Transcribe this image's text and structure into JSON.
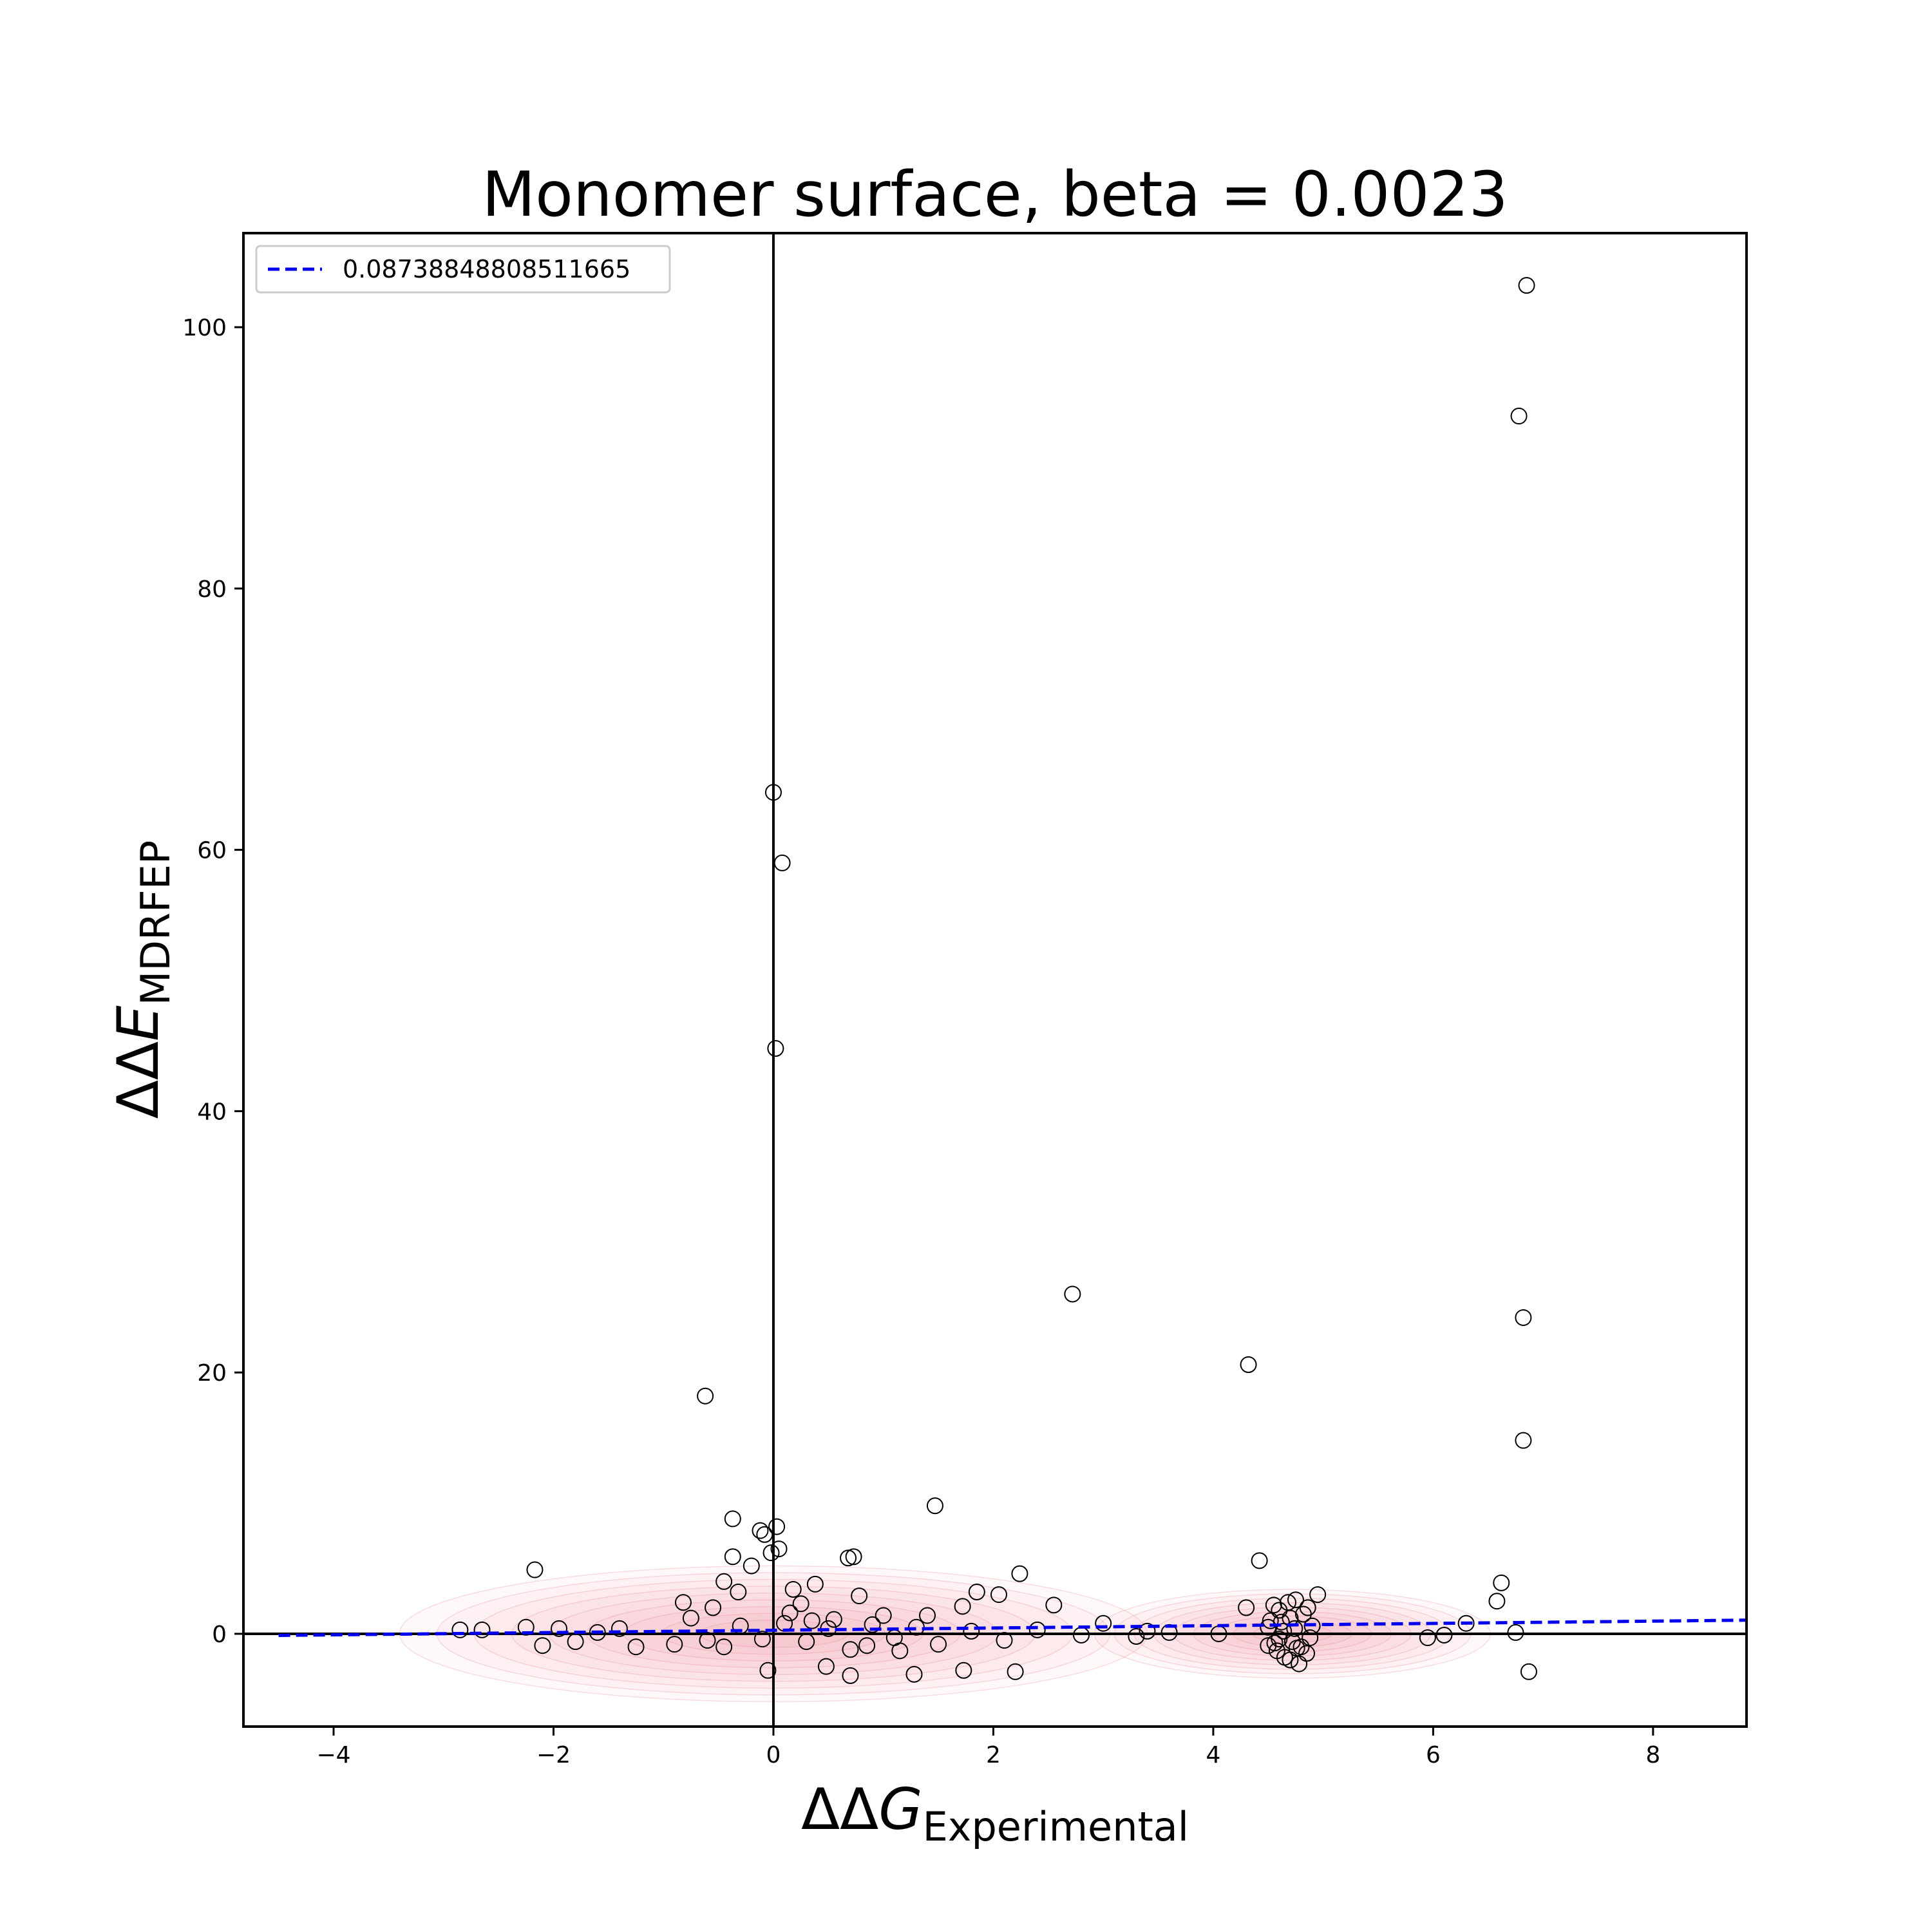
{
  "chart_data": {
    "type": "scatter",
    "title": "Monomer surface, beta = 0.0023",
    "xlabel": {
      "symbol": "ΔΔ",
      "italic": "G",
      "sub": "Experimental"
    },
    "ylabel": {
      "symbol": "ΔΔ",
      "italic": "E",
      "sub": "MDRFEP"
    },
    "xlim": [
      -4.82,
      8.85
    ],
    "ylim": [
      -7.1,
      107.2
    ],
    "xticks": [
      -4,
      -2,
      0,
      2,
      4,
      6,
      8
    ],
    "xtick_labels": [
      "−4",
      "−2",
      "0",
      "2",
      "4",
      "6",
      "8"
    ],
    "yticks": [
      0,
      20,
      40,
      60,
      80,
      100
    ],
    "ytick_labels": [
      "0",
      "20",
      "40",
      "60",
      "80",
      "100"
    ],
    "reference_lines": {
      "x": 0,
      "y": 0
    },
    "legend": {
      "placement": "top-left",
      "entries": [
        "0.08738848808511665"
      ]
    },
    "fit_line": {
      "name": "0.08738848808511665",
      "slope": 0.0874,
      "intercept": 0.27,
      "color": "#0000ee",
      "style": "dashed"
    },
    "density_color": "#e8808a",
    "marker": {
      "shape": "open-circle",
      "color": "#000000"
    },
    "series": [
      {
        "points": [
          [
            6.85,
            103.2
          ],
          [
            6.78,
            93.2
          ],
          [
            0.0,
            64.4
          ],
          [
            0.08,
            59.0
          ],
          [
            0.02,
            44.8
          ],
          [
            2.72,
            26.0
          ],
          [
            6.82,
            24.2
          ],
          [
            4.32,
            20.6
          ],
          [
            -0.62,
            18.2
          ],
          [
            6.82,
            14.8
          ],
          [
            1.47,
            9.8
          ],
          [
            -0.37,
            8.8
          ],
          [
            0.03,
            8.2
          ],
          [
            -0.12,
            7.9
          ],
          [
            -0.08,
            7.6
          ],
          [
            0.05,
            6.5
          ],
          [
            -0.02,
            6.2
          ],
          [
            -0.37,
            5.9
          ],
          [
            0.73,
            5.9
          ],
          [
            0.68,
            5.8
          ],
          [
            4.42,
            5.6
          ],
          [
            -0.2,
            5.2
          ],
          [
            -2.17,
            4.9
          ],
          [
            2.24,
            4.6
          ],
          [
            -0.45,
            4.0
          ],
          [
            0.38,
            3.8
          ],
          [
            6.62,
            3.9
          ],
          [
            0.18,
            3.4
          ],
          [
            -0.32,
            3.2
          ],
          [
            1.85,
            3.2
          ],
          [
            2.05,
            3.0
          ],
          [
            4.95,
            3.0
          ],
          [
            0.78,
            2.9
          ],
          [
            6.58,
            2.5
          ],
          [
            4.3,
            2.0
          ],
          [
            -0.82,
            2.4
          ],
          [
            -0.55,
            2.0
          ],
          [
            2.55,
            2.2
          ],
          [
            1.72,
            2.1
          ],
          [
            0.25,
            2.3
          ],
          [
            -2.85,
            0.3
          ],
          [
            -2.65,
            0.3
          ],
          [
            -2.25,
            0.5
          ],
          [
            -1.95,
            0.4
          ],
          [
            -1.6,
            0.1
          ],
          [
            -1.4,
            0.4
          ],
          [
            -2.1,
            -0.9
          ],
          [
            -1.25,
            -1.0
          ],
          [
            -0.9,
            -0.8
          ],
          [
            -0.6,
            -0.5
          ],
          [
            -0.3,
            0.6
          ],
          [
            -0.1,
            -0.4
          ],
          [
            0.1,
            0.8
          ],
          [
            0.3,
            -0.6
          ],
          [
            0.5,
            0.4
          ],
          [
            0.7,
            -1.2
          ],
          [
            0.9,
            0.7
          ],
          [
            1.1,
            -0.3
          ],
          [
            1.3,
            0.5
          ],
          [
            1.5,
            -0.8
          ],
          [
            1.8,
            0.2
          ],
          [
            2.1,
            -0.5
          ],
          [
            2.4,
            0.3
          ],
          [
            2.8,
            -0.1
          ],
          [
            3.0,
            0.8
          ],
          [
            3.3,
            -0.2
          ],
          [
            3.6,
            0.1
          ],
          [
            4.05,
            0.0
          ],
          [
            -0.05,
            -2.8
          ],
          [
            0.7,
            -3.2
          ],
          [
            1.28,
            -3.1
          ],
          [
            1.73,
            -2.8
          ],
          [
            2.2,
            -2.9
          ],
          [
            6.87,
            -2.9
          ],
          [
            0.48,
            -2.5
          ],
          [
            -1.8,
            -0.6
          ],
          [
            -0.75,
            1.2
          ],
          [
            0.15,
            1.6
          ],
          [
            0.55,
            1.1
          ],
          [
            1.0,
            1.4
          ],
          [
            1.4,
            1.4
          ],
          [
            0.85,
            -0.9
          ],
          [
            1.15,
            -1.3
          ],
          [
            0.35,
            1.0
          ],
          [
            -0.45,
            -1.0
          ],
          [
            6.1,
            -0.1
          ],
          [
            6.3,
            0.8
          ],
          [
            6.75,
            0.1
          ],
          [
            5.95,
            -0.3
          ],
          [
            3.4,
            0.2
          ],
          [
            4.5,
            0.5
          ],
          [
            4.6,
            -0.4
          ],
          [
            4.7,
            1.2
          ],
          [
            4.8,
            -1.0
          ],
          [
            4.55,
            2.2
          ],
          [
            4.65,
            -1.8
          ],
          [
            4.75,
            2.6
          ],
          [
            4.85,
            -1.5
          ],
          [
            4.6,
            1.8
          ],
          [
            4.7,
            -2.0
          ],
          [
            4.5,
            -0.9
          ],
          [
            4.9,
            0.6
          ],
          [
            4.62,
            0.9
          ],
          [
            4.72,
            -0.6
          ],
          [
            4.82,
            1.5
          ],
          [
            4.58,
            -1.3
          ],
          [
            4.68,
            2.4
          ],
          [
            4.78,
            -2.3
          ],
          [
            4.88,
            -0.3
          ],
          [
            4.52,
            1.0
          ],
          [
            4.64,
            0.2
          ],
          [
            4.76,
            -1.1
          ],
          [
            4.86,
            2.0
          ],
          [
            4.56,
            -0.7
          ],
          [
            4.74,
            0.4
          ]
        ]
      }
    ]
  }
}
